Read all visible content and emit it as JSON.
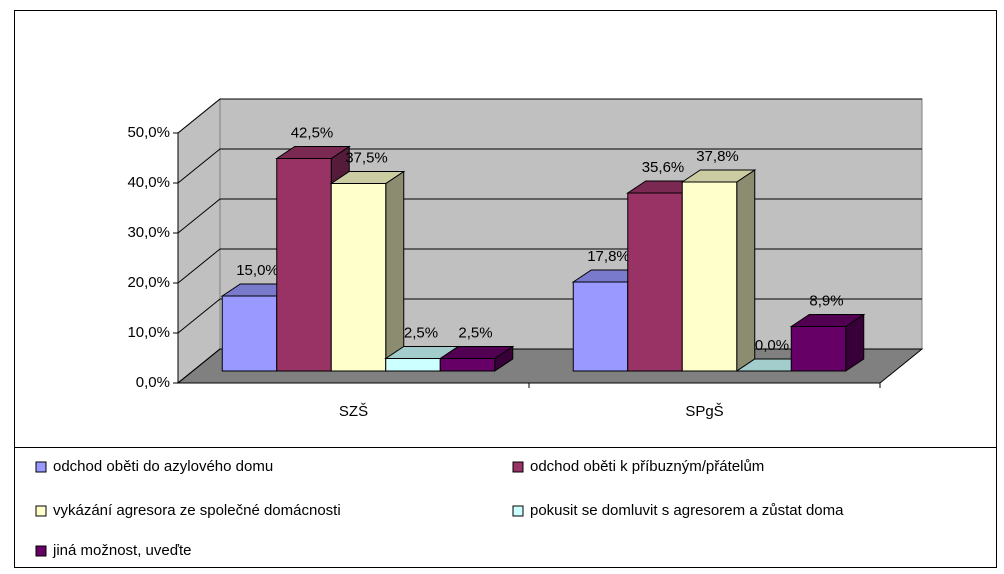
{
  "chart_data": {
    "type": "bar3d",
    "categories": [
      "SZŠ",
      "SPgŠ"
    ],
    "series": [
      {
        "name": "odchod oběti do azylového domu",
        "color": "#9999ff",
        "values": [
          15.0,
          17.8
        ],
        "value_labels": [
          "15,0%",
          "17,8%"
        ]
      },
      {
        "name": "odchod oběti k příbuzným/přátelům",
        "color": "#993366",
        "values": [
          42.5,
          35.6
        ],
        "value_labels": [
          "42,5%",
          "35,6%"
        ]
      },
      {
        "name": "vykázání agresora ze společné domácnosti",
        "color": "#ffffcc",
        "values": [
          37.5,
          37.8
        ],
        "value_labels": [
          "37,5%",
          "37,8%"
        ]
      },
      {
        "name": "pokusit se domluvit s agresorem a zůstat doma",
        "color": "#ccffff",
        "values": [
          2.5,
          0.0
        ],
        "value_labels": [
          "2,5%",
          "0,0%"
        ]
      },
      {
        "name": "jiná možnost, uveďte",
        "color": "#660066",
        "values": [
          2.5,
          8.9
        ],
        "value_labels": [
          "2,5%",
          "8,9%"
        ]
      }
    ],
    "ylim": [
      0,
      50
    ],
    "yticks": [
      {
        "value": 0,
        "label": "0,0%"
      },
      {
        "value": 10,
        "label": "10,0%"
      },
      {
        "value": 20,
        "label": "20,0%"
      },
      {
        "value": 30,
        "label": "30,0%"
      },
      {
        "value": 40,
        "label": "40,0%"
      },
      {
        "value": 50,
        "label": "50,0%"
      }
    ],
    "grid": true
  }
}
